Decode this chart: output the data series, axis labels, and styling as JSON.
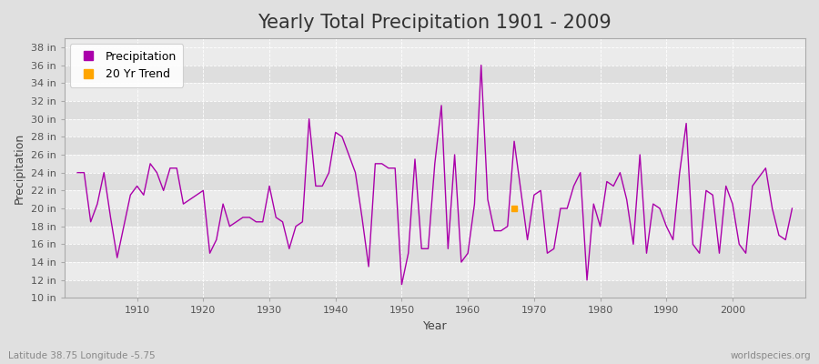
{
  "title": "Yearly Total Precipitation 1901 - 2009",
  "xlabel": "Year",
  "ylabel": "Precipitation",
  "subtitle": "Latitude 38.75 Longitude -5.75",
  "watermark": "worldspecies.org",
  "years": [
    1901,
    1902,
    1903,
    1904,
    1905,
    1906,
    1907,
    1908,
    1909,
    1910,
    1911,
    1912,
    1913,
    1914,
    1915,
    1916,
    1917,
    1918,
    1919,
    1920,
    1921,
    1922,
    1923,
    1924,
    1925,
    1926,
    1927,
    1928,
    1929,
    1930,
    1931,
    1932,
    1933,
    1934,
    1935,
    1936,
    1937,
    1938,
    1939,
    1940,
    1941,
    1942,
    1943,
    1944,
    1945,
    1946,
    1947,
    1948,
    1949,
    1950,
    1951,
    1952,
    1953,
    1954,
    1955,
    1956,
    1957,
    1958,
    1959,
    1960,
    1961,
    1962,
    1963,
    1964,
    1965,
    1966,
    1967,
    1968,
    1969,
    1970,
    1971,
    1972,
    1973,
    1974,
    1975,
    1976,
    1977,
    1978,
    1979,
    1980,
    1981,
    1982,
    1983,
    1984,
    1985,
    1986,
    1987,
    1988,
    1989,
    1990,
    1991,
    1992,
    1993,
    1994,
    1995,
    1996,
    1997,
    1998,
    1999,
    2000,
    2001,
    2002,
    2003,
    2004,
    2005,
    2006,
    2007,
    2008,
    2009
  ],
  "precip_in": [
    24.0,
    24.0,
    18.5,
    20.5,
    24.0,
    19.0,
    14.5,
    18.0,
    21.5,
    22.5,
    21.5,
    25.0,
    24.0,
    22.0,
    24.5,
    24.5,
    20.5,
    21.0,
    21.5,
    22.0,
    15.0,
    16.5,
    20.5,
    18.0,
    18.5,
    19.0,
    19.0,
    18.5,
    18.5,
    22.5,
    19.0,
    18.5,
    15.5,
    18.0,
    18.5,
    30.0,
    22.5,
    22.5,
    24.0,
    28.5,
    28.0,
    26.0,
    24.0,
    19.0,
    13.5,
    25.0,
    25.0,
    24.5,
    24.5,
    11.5,
    15.0,
    25.5,
    15.5,
    15.5,
    25.0,
    31.5,
    15.5,
    26.0,
    14.0,
    15.0,
    20.5,
    36.0,
    21.0,
    17.5,
    17.5,
    18.0,
    27.5,
    22.0,
    16.5,
    21.5,
    22.0,
    15.0,
    15.5,
    20.0,
    20.0,
    22.5,
    24.0,
    12.0,
    20.5,
    18.0,
    23.0,
    22.5,
    24.0,
    21.0,
    16.0,
    26.0,
    15.0,
    20.5,
    20.0,
    18.0,
    16.5,
    24.0,
    29.5,
    16.0,
    15.0,
    22.0,
    21.5,
    15.0,
    22.5,
    20.5,
    16.0,
    15.0,
    22.5,
    23.5,
    24.5,
    20.0,
    17.0,
    16.5,
    20.0
  ],
  "trend_year": 1967,
  "trend_value": 20.0,
  "precip_color": "#aa00aa",
  "trend_color": "#ffa500",
  "fig_bg_color": "#e0e0e0",
  "plot_bg_light": "#ebebeb",
  "plot_bg_dark": "#dedede",
  "grid_color": "#ffffff",
  "ytick_labels": [
    "10 in",
    "12 in",
    "14 in",
    "16 in",
    "18 in",
    "20 in",
    "22 in",
    "24 in",
    "26 in",
    "28 in",
    "30 in",
    "32 in",
    "34 in",
    "36 in",
    "38 in"
  ],
  "ytick_values": [
    10,
    12,
    14,
    16,
    18,
    20,
    22,
    24,
    26,
    28,
    30,
    32,
    34,
    36,
    38
  ],
  "ylim": [
    10,
    39
  ],
  "xlim": [
    1899,
    2011
  ],
  "xtick_values": [
    1910,
    1920,
    1930,
    1940,
    1950,
    1960,
    1970,
    1980,
    1990,
    2000
  ],
  "title_fontsize": 15,
  "axis_label_fontsize": 9,
  "tick_fontsize": 8,
  "legend_fontsize": 9
}
